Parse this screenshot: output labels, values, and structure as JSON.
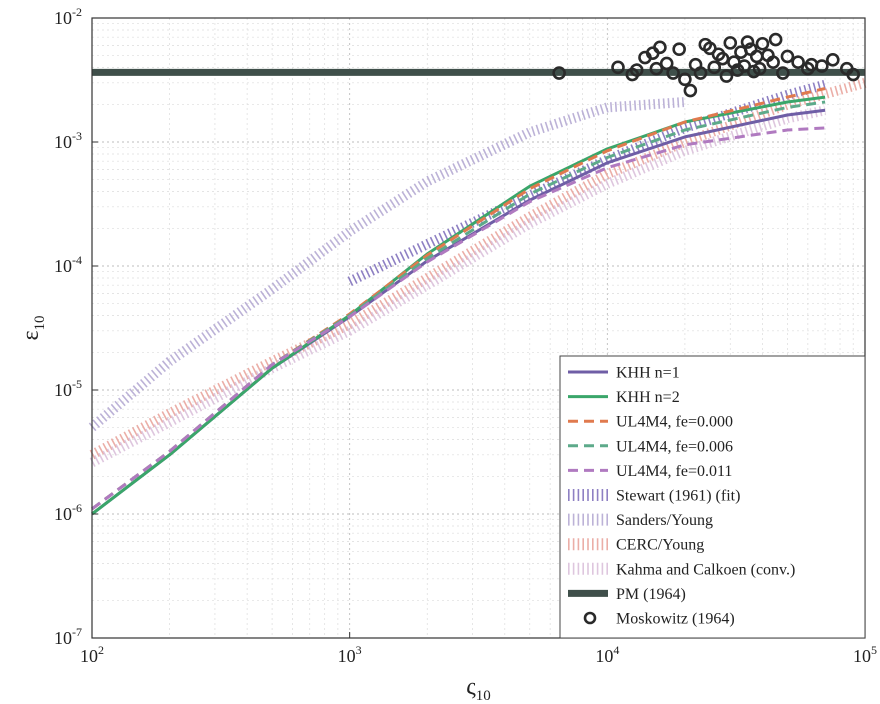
{
  "chart_data": {
    "type": "line",
    "xscale": "log",
    "yscale": "log",
    "xlim": [
      100,
      100000
    ],
    "ylim": [
      1e-07,
      0.01
    ],
    "grid": true,
    "legend_position": "bottom-right",
    "xlabel": {
      "base": "ς",
      "sub": "10"
    },
    "ylabel": {
      "base": "ε",
      "sub": "10"
    },
    "x_ticks": [
      {
        "base": "10",
        "exp": "2",
        "value": 100
      },
      {
        "base": "10",
        "exp": "3",
        "value": 1000
      },
      {
        "base": "10",
        "exp": "4",
        "value": 10000
      },
      {
        "base": "10",
        "exp": "5",
        "value": 100000
      }
    ],
    "y_ticks": [
      {
        "base": "10",
        "exp": "-7",
        "value": 1e-07
      },
      {
        "base": "10",
        "exp": "-6",
        "value": 1e-06
      },
      {
        "base": "10",
        "exp": "-5",
        "value": 1e-05
      },
      {
        "base": "10",
        "exp": "-4",
        "value": 0.0001
      },
      {
        "base": "10",
        "exp": "-3",
        "value": 0.001
      },
      {
        "base": "10",
        "exp": "-2",
        "value": 0.01
      }
    ],
    "series": [
      {
        "name": "KHH n=1",
        "style": "solid",
        "color": "#6f5ea6",
        "x": [
          100,
          200,
          500,
          1000,
          2000,
          5000,
          10000,
          20000,
          50000,
          70000
        ],
        "y": [
          1e-06,
          3e-06,
          1.5e-05,
          3.9e-05,
          0.00011,
          0.00034,
          0.00068,
          0.0011,
          0.00165,
          0.0018
        ]
      },
      {
        "name": "KHH n=2",
        "style": "solid",
        "color": "#3aa66a",
        "x": [
          100,
          200,
          500,
          1000,
          2000,
          5000,
          10000,
          20000,
          50000,
          70000
        ],
        "y": [
          1e-06,
          3e-06,
          1.5e-05,
          4e-05,
          0.000125,
          0.00044,
          0.00088,
          0.00145,
          0.0021,
          0.0023
        ]
      },
      {
        "name": "UL4M4, fe=0.000",
        "style": "dashed",
        "color": "#e07a4e",
        "x": [
          100,
          200,
          500,
          1000,
          2000,
          5000,
          10000,
          20000,
          50000,
          70000
        ],
        "y": [
          1.1e-06,
          3.2e-06,
          1.6e-05,
          4.1e-05,
          0.000122,
          0.00042,
          0.00085,
          0.00145,
          0.0023,
          0.0027
        ]
      },
      {
        "name": "UL4M4, fe=0.006",
        "style": "dashed",
        "color": "#5daa8a",
        "x": [
          100,
          200,
          500,
          1000,
          2000,
          5000,
          10000,
          20000,
          50000,
          70000
        ],
        "y": [
          1.1e-06,
          3.2e-06,
          1.6e-05,
          4e-05,
          0.000115,
          0.00038,
          0.00075,
          0.00125,
          0.0019,
          0.0021
        ]
      },
      {
        "name": "UL4M4, fe=0.011",
        "style": "dashed",
        "color": "#b07ac0",
        "x": [
          100,
          200,
          500,
          1000,
          2000,
          5000,
          10000,
          20000,
          50000,
          70000
        ],
        "y": [
          1.1e-06,
          3.2e-06,
          1.6e-05,
          3.9e-05,
          0.000108,
          0.00033,
          0.00062,
          0.00095,
          0.00125,
          0.0013
        ]
      },
      {
        "name": "Stewart (1961) (fit)",
        "style": "dotted",
        "color": "#7a6ab8",
        "x": [
          1000,
          2000,
          5000,
          10000,
          20000,
          50000,
          70000
        ],
        "y": [
          7.5e-05,
          0.00015,
          0.00037,
          0.00072,
          0.0013,
          0.0024,
          0.0029
        ]
      },
      {
        "name": "Sanders/Young",
        "style": "dotted",
        "color": "#b0a4d0",
        "x": [
          100,
          200,
          500,
          1000,
          2000,
          5000,
          10000,
          20000
        ],
        "y": [
          5e-06,
          1.7e-05,
          6.5e-05,
          0.00019,
          0.00048,
          0.0012,
          0.0019,
          0.0021
        ]
      },
      {
        "name": "CERC/Young",
        "style": "dotted",
        "color": "#e8a098",
        "x": [
          100,
          200,
          500,
          1000,
          2000,
          5000,
          10000,
          20000,
          50000,
          100000
        ],
        "y": [
          3e-06,
          6.5e-06,
          1.7e-05,
          3.4e-05,
          8e-05,
          0.00025,
          0.00055,
          0.001,
          0.002,
          0.003
        ]
      },
      {
        "name": "Kahma and Calkoen (conv.)",
        "style": "dotted",
        "color": "#d8bcd8",
        "x": [
          100,
          200,
          500,
          1000,
          2000,
          5000,
          10000,
          20000,
          50000,
          70000
        ],
        "y": [
          2.6e-06,
          5.5e-06,
          1.5e-05,
          3e-05,
          7e-05,
          0.00022,
          0.00046,
          0.00085,
          0.00155,
          0.0018
        ]
      },
      {
        "name": "PM (1964)",
        "style": "thick",
        "color": "#3f4f4a",
        "x": [
          100,
          100000
        ],
        "y": [
          0.00364,
          0.00364
        ]
      },
      {
        "name": "Moskowitz (1964)",
        "style": "markers",
        "color": "#2a2a2a",
        "x": [
          6500,
          11000,
          12500,
          13000,
          14000,
          15000,
          15500,
          16000,
          17000,
          18000,
          19000,
          20000,
          21000,
          22000,
          23000,
          24000,
          25000,
          26000,
          27000,
          28000,
          29000,
          30000,
          31000,
          32000,
          33000,
          34000,
          35000,
          36000,
          37000,
          38000,
          39000,
          40000,
          42000,
          44000,
          45000,
          48000,
          50000,
          55000,
          60000,
          62000,
          68000,
          75000,
          85000,
          90000
        ],
        "y": [
          0.0036,
          0.004,
          0.0035,
          0.0038,
          0.0048,
          0.0052,
          0.0039,
          0.0058,
          0.0043,
          0.0036,
          0.0056,
          0.0032,
          0.0026,
          0.0042,
          0.0036,
          0.0061,
          0.0057,
          0.004,
          0.0051,
          0.0047,
          0.0034,
          0.0063,
          0.0044,
          0.0038,
          0.0053,
          0.0041,
          0.0064,
          0.0056,
          0.0037,
          0.0049,
          0.0039,
          0.0062,
          0.005,
          0.0044,
          0.0067,
          0.0036,
          0.0049,
          0.0044,
          0.0039,
          0.0042,
          0.0041,
          0.0046,
          0.0039,
          0.0035
        ]
      }
    ]
  }
}
